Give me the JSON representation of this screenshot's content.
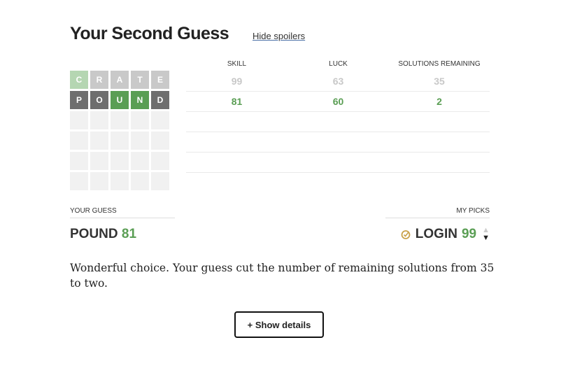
{
  "header": {
    "title": "Your Second Guess",
    "hide_spoilers": "Hide spoilers"
  },
  "board": [
    [
      {
        "l": "C",
        "s": "green-faded"
      },
      {
        "l": "R",
        "s": "gray-faded"
      },
      {
        "l": "A",
        "s": "gray-faded"
      },
      {
        "l": "T",
        "s": "gray-faded"
      },
      {
        "l": "E",
        "s": "gray-faded"
      }
    ],
    [
      {
        "l": "P",
        "s": "gray"
      },
      {
        "l": "O",
        "s": "gray"
      },
      {
        "l": "U",
        "s": "green"
      },
      {
        "l": "N",
        "s": "green"
      },
      {
        "l": "D",
        "s": "gray"
      }
    ],
    [],
    [],
    [],
    []
  ],
  "colors": {
    "green": "#5a9e54",
    "green-faded": "#b5d6b2",
    "gray": "#6e6e6e",
    "gray-faded": "#c9c9c9",
    "empty": "#f1f1f1"
  },
  "table": {
    "headers": [
      "SKILL",
      "LUCK",
      "SOLUTIONS REMAINING"
    ],
    "rows": [
      [
        "99",
        "63",
        "35"
      ],
      [
        "81",
        "60",
        "2"
      ]
    ]
  },
  "your_guess": {
    "label": "YOUR GUESS",
    "word": "POUND",
    "score": "81"
  },
  "my_picks": {
    "label": "MY PICKS",
    "word": "LOGIN",
    "score": "99",
    "icon": "target-check-icon"
  },
  "message": "Wonderful choice. Your guess cut the number of remaining solutions from 35 to two.",
  "show_details": "+ Show details"
}
